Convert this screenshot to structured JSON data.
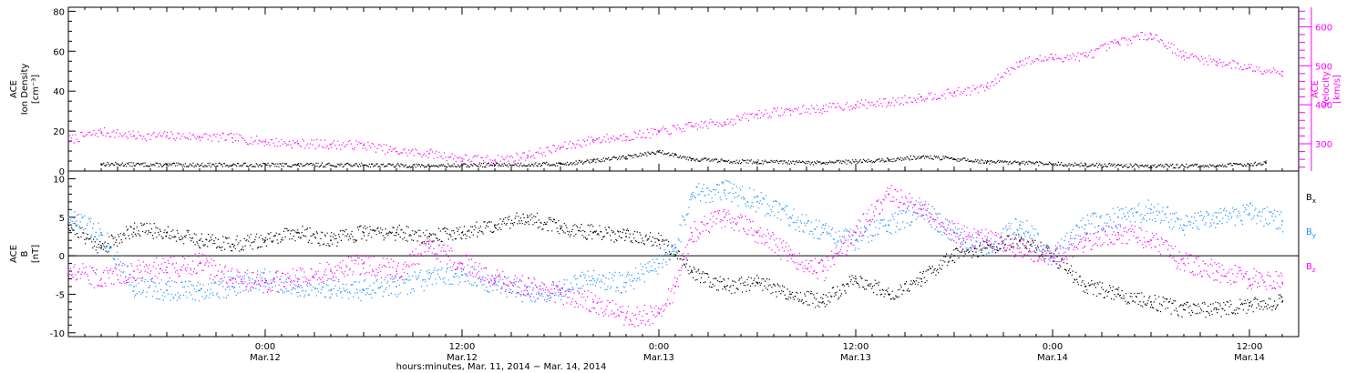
{
  "chart_data": [
    {
      "type": "scatter",
      "panel": "top",
      "ylabel_lines": [
        "ACE",
        "Ion Density",
        "[cm⁻³]"
      ],
      "y2label_lines": [
        "ACE",
        "Velocity",
        "[km/s]"
      ],
      "ylim": [
        0,
        82
      ],
      "yticks": [
        0,
        20,
        40,
        60,
        80
      ],
      "y2lim": [
        230,
        650
      ],
      "y2ticks": [
        300,
        400,
        500,
        600
      ],
      "xlim": [
        -12,
        63
      ],
      "series": [
        {
          "name": "Ion Density",
          "axis": "left",
          "color": "#000000",
          "x": [
            -10,
            -6,
            -2,
            2,
            6,
            10,
            14,
            18,
            20,
            22,
            24,
            25,
            26,
            28,
            30,
            34,
            38,
            40,
            42,
            44,
            46,
            50,
            54,
            58,
            61
          ],
          "y": [
            3.5,
            3.0,
            3.0,
            3.0,
            3.0,
            2.5,
            3.0,
            3.5,
            5.0,
            7.0,
            9.5,
            8.0,
            6.0,
            5.0,
            4.5,
            4.0,
            5.5,
            7.0,
            6.0,
            4.5,
            4.0,
            3.0,
            2.5,
            2.5,
            4.0
          ]
        },
        {
          "name": "Velocity",
          "axis": "right",
          "color": "#ff00ff",
          "x": [
            -12,
            -10,
            -8,
            -6,
            -4,
            -2,
            0,
            2,
            4,
            6,
            8,
            10,
            12,
            14,
            16,
            18,
            20,
            22,
            24,
            26,
            28,
            30,
            32,
            34,
            36,
            38,
            40,
            42,
            44,
            46,
            48,
            50,
            52,
            54,
            56,
            58,
            60,
            62
          ],
          "y": [
            310,
            330,
            320,
            320,
            318,
            315,
            305,
            300,
            298,
            296,
            280,
            275,
            262,
            258,
            270,
            290,
            310,
            318,
            330,
            345,
            355,
            375,
            385,
            390,
            400,
            405,
            420,
            430,
            445,
            510,
            520,
            525,
            560,
            580,
            525,
            510,
            495,
            485
          ]
        }
      ]
    },
    {
      "type": "scatter",
      "panel": "bottom",
      "ylabel_lines": [
        "ACE",
        "B",
        "[nT]"
      ],
      "ylim": [
        -10.5,
        11
      ],
      "yticks": [
        -10,
        -5,
        0,
        5,
        10
      ],
      "zero_line": true,
      "xlim": [
        -12,
        63
      ],
      "xticks": [
        {
          "x": 0,
          "time": "0:00",
          "date": "Mar.12"
        },
        {
          "x": 12,
          "time": "12:00",
          "date": "Mar.12"
        },
        {
          "x": 24,
          "time": "0:00",
          "date": "Mar.13"
        },
        {
          "x": 36,
          "time": "12:00",
          "date": "Mar.13"
        },
        {
          "x": 48,
          "time": "0:00",
          "date": "Mar.14"
        },
        {
          "x": 60,
          "time": "12:00",
          "date": "Mar.14"
        }
      ],
      "xlabel": "hours:minutes, Mar. 11, 2014 − Mar. 14, 2014",
      "series": [
        {
          "name": "Bx",
          "legend_main": "B",
          "legend_sub": "x",
          "color": "#000000",
          "x": [
            -12,
            -10,
            -8,
            -6,
            -4,
            -2,
            0,
            2,
            4,
            6,
            8,
            10,
            12,
            14,
            16,
            18,
            20,
            22,
            24,
            25,
            26,
            28,
            30,
            32,
            34,
            36,
            38,
            40,
            42,
            44,
            46,
            48,
            50,
            52,
            54,
            56,
            58,
            60,
            62
          ],
          "y": [
            4.0,
            1.0,
            3.5,
            3.0,
            2.0,
            1.5,
            2.0,
            3.0,
            2.0,
            3.0,
            3.0,
            2.5,
            3.0,
            4.0,
            5.0,
            3.5,
            3.0,
            2.5,
            2.0,
            0.0,
            -2.0,
            -4.0,
            -3.5,
            -5.0,
            -6.0,
            -3.0,
            -5.0,
            -3.0,
            0.0,
            1.0,
            2.0,
            0.0,
            -4.0,
            -5.0,
            -6.0,
            -7.0,
            -7.0,
            -6.5,
            -6.0
          ]
        },
        {
          "name": "By",
          "legend_main": "B",
          "legend_sub": "y",
          "color": "#1e90ff",
          "x": [
            -12,
            -10,
            -8,
            -6,
            -4,
            -2,
            0,
            2,
            4,
            6,
            8,
            10,
            12,
            14,
            16,
            18,
            20,
            22,
            24,
            25,
            26,
            28,
            30,
            32,
            34,
            36,
            38,
            40,
            42,
            44,
            46,
            48,
            50,
            52,
            54,
            56,
            58,
            60,
            62
          ],
          "y": [
            5.0,
            3.0,
            -4.0,
            -4.5,
            -4.5,
            -4.0,
            -3.0,
            -4.0,
            -4.5,
            -4.5,
            -4.0,
            -3.0,
            -2.5,
            -3.5,
            -5.0,
            -4.5,
            -3.0,
            -3.5,
            -1.0,
            1.0,
            8.0,
            8.5,
            7.0,
            5.0,
            3.0,
            2.0,
            4.0,
            6.0,
            3.0,
            1.0,
            4.0,
            0.0,
            4.0,
            5.0,
            6.0,
            4.0,
            5.0,
            5.5,
            4.5
          ]
        },
        {
          "name": "Bz",
          "legend_main": "B",
          "legend_sub": "z",
          "color": "#ff00ff",
          "x": [
            -12,
            -10,
            -8,
            -6,
            -4,
            -2,
            0,
            2,
            4,
            6,
            8,
            10,
            12,
            14,
            16,
            18,
            20,
            22,
            24,
            25,
            26,
            28,
            30,
            32,
            34,
            36,
            38,
            40,
            42,
            44,
            46,
            48,
            50,
            52,
            54,
            56,
            58,
            60,
            62
          ],
          "y": [
            -2.0,
            -3.0,
            -2.0,
            -1.5,
            -1.0,
            -3.0,
            -3.5,
            -3.0,
            -2.0,
            -1.0,
            -2.0,
            1.0,
            -1.0,
            -3.0,
            -4.0,
            -5.0,
            -6.0,
            -8.0,
            -7.5,
            -4.0,
            3.0,
            5.0,
            3.0,
            0.0,
            -2.0,
            3.0,
            8.0,
            6.0,
            3.0,
            2.0,
            1.0,
            0.0,
            2.0,
            3.0,
            2.0,
            -1.0,
            -2.0,
            -3.0,
            -3.5
          ]
        }
      ]
    }
  ]
}
